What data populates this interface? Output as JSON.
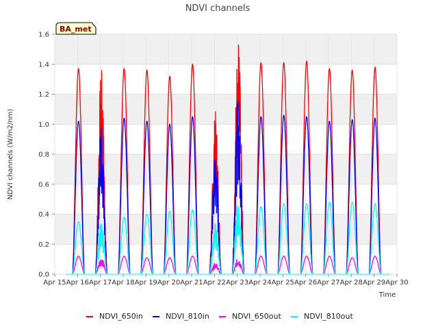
{
  "chart_data": {
    "type": "line",
    "title": "NDVI channels",
    "xlabel": "Time",
    "ylabel": "NDVI channels (W/m2/nm)",
    "badge": "BA_met",
    "ylim": [
      0,
      1.6
    ],
    "xlim_days": [
      15,
      30
    ],
    "y_ticks": [
      "0.0",
      "0.2",
      "0.4",
      "0.6",
      "0.8",
      "1.0",
      "1.2",
      "1.4",
      "1.6"
    ],
    "x_ticks": [
      "Apr 15",
      "Apr 16",
      "Apr 17",
      "Apr 18",
      "Apr 19",
      "Apr 20",
      "Apr 21",
      "Apr 22",
      "Apr 23",
      "Apr 24",
      "Apr 25",
      "Apr 26",
      "Apr 27",
      "Apr 28",
      "Apr 29",
      "Apr 30"
    ],
    "series": [
      {
        "name": "NDVI_650in",
        "color": "#ff0000",
        "daily_peaks": [
          1.37,
          1.2,
          1.37,
          1.36,
          1.32,
          1.4,
          0.95,
          1.41,
          1.41,
          1.41,
          1.42,
          1.37,
          1.36,
          1.38
        ]
      },
      {
        "name": "NDVI_810in",
        "color": "#0000ff",
        "daily_peaks": [
          1.02,
          0.9,
          1.04,
          1.02,
          1.0,
          1.05,
          0.73,
          1.07,
          1.05,
          1.06,
          1.05,
          1.02,
          1.03,
          1.04
        ]
      },
      {
        "name": "NDVI_650out",
        "color": "#ff00ff",
        "daily_peaks": [
          0.12,
          0.1,
          0.12,
          0.11,
          0.11,
          0.12,
          0.07,
          0.1,
          0.12,
          0.12,
          0.12,
          0.12,
          0.11,
          0.12
        ]
      },
      {
        "name": "NDVI_810out",
        "color": "#00ffff",
        "daily_peaks": [
          0.35,
          0.32,
          0.38,
          0.4,
          0.42,
          0.43,
          0.3,
          0.45,
          0.45,
          0.47,
          0.47,
          0.48,
          0.48,
          0.47
        ]
      }
    ],
    "noisy_days": [
      1,
      6,
      7
    ]
  }
}
